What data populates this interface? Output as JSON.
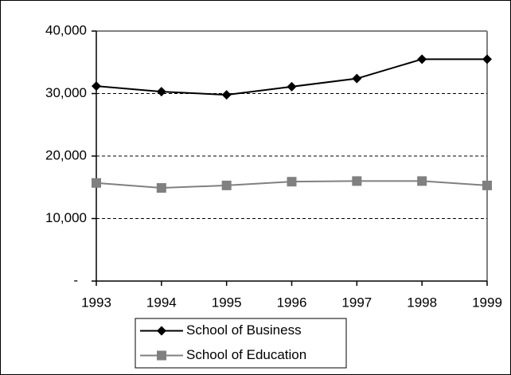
{
  "chart_data": {
    "type": "line",
    "categories": [
      "1993",
      "1994",
      "1995",
      "1996",
      "1997",
      "1998",
      "1999"
    ],
    "series": [
      {
        "name": "School of Business",
        "color": "#000000",
        "marker": "diamond",
        "values": [
          31200,
          30300,
          29800,
          31100,
          32400,
          35500,
          35500
        ]
      },
      {
        "name": "School of Education",
        "color": "#808080",
        "marker": "square",
        "values": [
          15700,
          14900,
          15300,
          15900,
          16000,
          16000,
          15300
        ]
      }
    ],
    "ylim": [
      0,
      40000
    ],
    "yticks": [
      {
        "value": 0,
        "label": "-"
      },
      {
        "value": 10000,
        "label": "10,000"
      },
      {
        "value": 20000,
        "label": "20,000"
      },
      {
        "value": 30000,
        "label": "30,000"
      },
      {
        "value": 40000,
        "label": "40,000"
      }
    ],
    "grid": true,
    "legend": "bottom"
  }
}
